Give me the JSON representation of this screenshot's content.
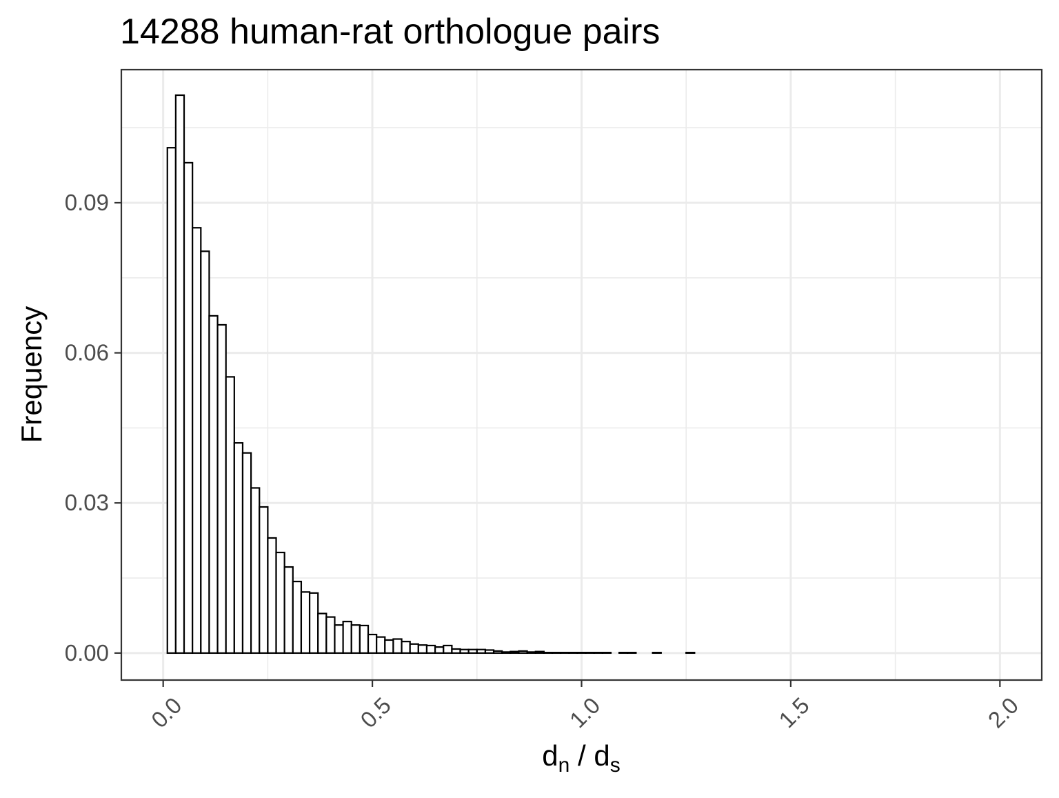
{
  "chart_data": {
    "type": "bar",
    "title": "14288 human-rat orthologue pairs",
    "xlabel_main": "d",
    "xlabel_sub_n": "n",
    "xlabel_sep": " / d",
    "xlabel_sub_s": "s",
    "ylabel": "Frequency",
    "xlim": [
      -0.1,
      2.1
    ],
    "ylim": [
      -0.0054,
      0.1166
    ],
    "x_major_ticks": [
      0.0,
      0.5,
      1.0,
      1.5,
      2.0
    ],
    "x_tick_labels": [
      "0.0",
      "0.5",
      "1.0",
      "1.5",
      "2.0"
    ],
    "y_major_ticks": [
      0.0,
      0.03,
      0.06,
      0.09
    ],
    "y_tick_labels": [
      "0.00",
      "0.03",
      "0.06",
      "0.09"
    ],
    "x_minor_ticks": [
      0.25,
      0.75,
      1.25,
      1.75
    ],
    "y_minor_ticks": [
      0.015,
      0.045,
      0.075,
      0.105
    ],
    "grid": true,
    "bin_width": 0.02,
    "bin_start": 0.01,
    "values": [
      0.101,
      0.1115,
      0.098,
      0.085,
      0.0803,
      0.0674,
      0.0656,
      0.0552,
      0.042,
      0.04,
      0.033,
      0.0292,
      0.023,
      0.0201,
      0.0172,
      0.0143,
      0.0122,
      0.012,
      0.0079,
      0.0072,
      0.0056,
      0.0063,
      0.0056,
      0.0055,
      0.0037,
      0.0032,
      0.0026,
      0.0028,
      0.0023,
      0.0018,
      0.0016,
      0.0015,
      0.0012,
      0.0015,
      0.0008,
      0.0007,
      0.0007,
      0.0007,
      0.0006,
      0.0004,
      0.0002,
      0.0003,
      0.0004,
      0.0002,
      0.0003,
      0.0001,
      0.0001,
      0.0001,
      0.0001,
      0.0001,
      0.0001,
      0.0001,
      0.0001,
      0.0,
      0.0001,
      0.0001,
      0.0,
      0.0,
      0.0001,
      0.0,
      0.0,
      0.0,
      0.0001,
      0.0,
      0.0,
      0.0,
      0.0,
      0.0,
      0.0,
      0.0,
      0.0,
      0.0,
      0.0,
      0.0,
      0.0,
      0.0,
      0.0,
      0.0,
      0.0,
      0.0,
      0.0,
      0.0,
      0.0,
      0.0,
      0.0,
      0.0,
      0.0,
      0.0,
      0.0,
      0.0,
      0.0,
      0.0,
      0.0,
      0.0,
      0.0,
      0.0,
      0.0,
      0.0,
      0.0
    ]
  }
}
